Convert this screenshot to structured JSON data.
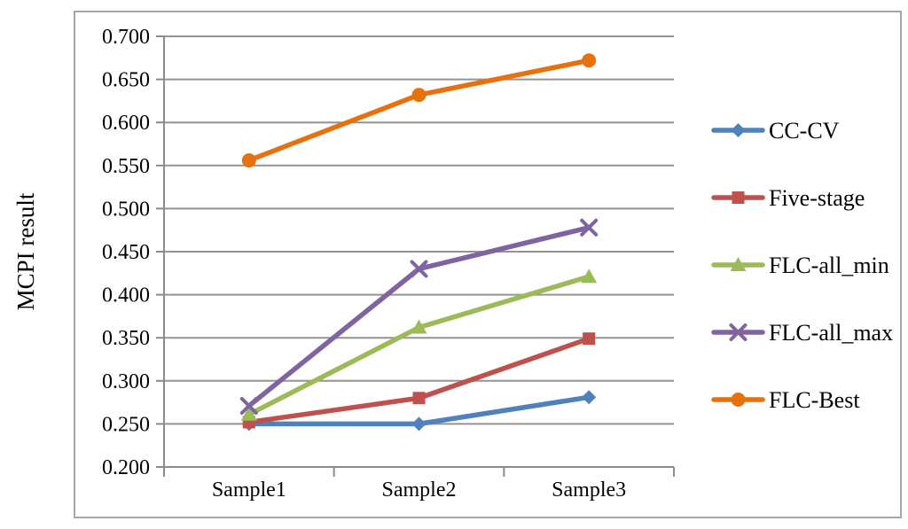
{
  "figure": {
    "background": "#ffffff",
    "border_color": "#a6a6a6",
    "gridline_color": "#949494",
    "axis_color": "#8c8c8c",
    "text_color": "#000000"
  },
  "chart_data": {
    "type": "line",
    "title": "",
    "xlabel": "",
    "ylabel": "MCPI result",
    "categories": [
      "Sample1",
      "Sample2",
      "Sample3"
    ],
    "series": [
      {
        "name": "CC-CV",
        "values": [
          0.25,
          0.25,
          0.281
        ],
        "color": "#4F81BD",
        "marker": "diamond"
      },
      {
        "name": "Five-stage",
        "values": [
          0.252,
          0.28,
          0.349
        ],
        "color": "#C0504D",
        "marker": "square"
      },
      {
        "name": "FLC-all_min",
        "values": [
          0.261,
          0.362,
          0.421
        ],
        "color": "#9BBB59",
        "marker": "triangle"
      },
      {
        "name": "FLC-all_max",
        "values": [
          0.271,
          0.43,
          0.478
        ],
        "color": "#8064A2",
        "marker": "x"
      },
      {
        "name": "FLC-Best",
        "values": [
          0.556,
          0.632,
          0.672
        ],
        "color": "#E8710D",
        "marker": "circle"
      }
    ],
    "ylim": [
      0.2,
      0.7
    ],
    "ytick_labels": [
      "0.200",
      "0.250",
      "0.300",
      "0.350",
      "0.400",
      "0.450",
      "0.500",
      "0.550",
      "0.600",
      "0.650",
      "0.700"
    ],
    "grid": true,
    "legend_position": "right"
  }
}
